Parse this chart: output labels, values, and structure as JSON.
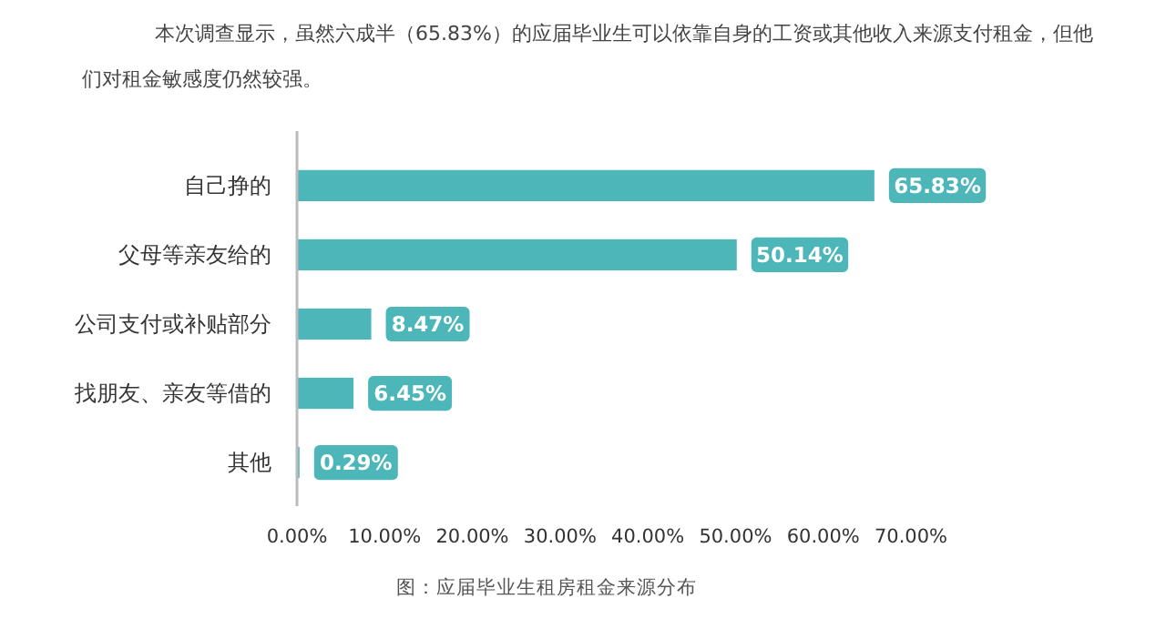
{
  "chart_data": {
    "type": "bar",
    "orientation": "horizontal",
    "categories": [
      "自己挣的",
      "父母等亲友给的",
      "公司支付或补贴部分",
      "找朋友、亲友等借的",
      "其他"
    ],
    "values": [
      65.83,
      50.14,
      8.47,
      6.45,
      0.29
    ],
    "value_labels": [
      "65.83%",
      "50.14%",
      "8.47%",
      "6.45%",
      "0.29%"
    ],
    "color": "#4cb6b9",
    "xlim": [
      0,
      70
    ],
    "xticks": [
      {
        "value": 0,
        "label": "0.00%"
      },
      {
        "value": 10,
        "label": "10.00%"
      },
      {
        "value": 20,
        "label": "20.00%"
      },
      {
        "value": 30,
        "label": "30.00%"
      },
      {
        "value": 40,
        "label": "40.00%"
      },
      {
        "value": 50,
        "label": "50.00%"
      },
      {
        "value": 60,
        "label": "60.00%"
      },
      {
        "value": 70,
        "label": "70.00%"
      }
    ],
    "grid": false,
    "annotations": [
      "本次调查显示，虽然六成半（65.83%）的应届毕业生可以依靠自身的工资或其他收入来源支付租金，但他们对租金敏感度仍然较强。",
      "图：应届毕业生租房租金来源分布"
    ]
  }
}
